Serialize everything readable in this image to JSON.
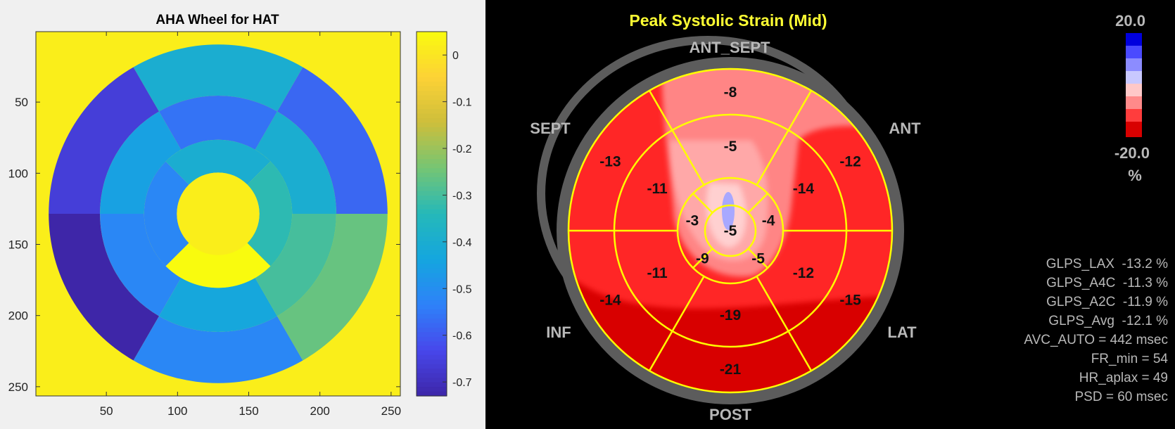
{
  "left_figure": {
    "title": "AHA Wheel for HAT",
    "x_ticks": [
      "50",
      "100",
      "150",
      "200",
      "250"
    ],
    "y_ticks": [
      "50",
      "100",
      "150",
      "200",
      "250"
    ],
    "colorbar_ticks": [
      "0",
      "-0.1",
      "-0.2",
      "-0.3",
      "-0.4",
      "-0.5",
      "-0.6",
      "-0.7"
    ]
  },
  "right_figure": {
    "title": "Peak Systolic Strain (Mid)",
    "wall_labels": {
      "ant_sept": "ANT_SEPT",
      "sept": "SEPT",
      "ant": "ANT",
      "inf": "INF",
      "lat": "LAT",
      "post": "POST"
    },
    "scale": {
      "top": "20.0",
      "bottom": "-20.0",
      "unit": "%"
    },
    "stats": [
      "GLPS_LAX  -13.2 %",
      "GLPS_A4C  -11.3 %",
      "GLPS_A2C  -11.9 %",
      "GLPS_Avg  -12.1 %",
      "AVC_AUTO = 442 msec",
      "FR_min = 54",
      "HR_aplax = 49",
      "PSD = 60 msec"
    ]
  },
  "chart_data": [
    {
      "type": "heatmap",
      "title": "AHA Wheel for HAT",
      "xlabel": "",
      "ylabel": "",
      "xlim": [
        1,
        256
      ],
      "ylim": [
        256,
        1
      ],
      "x_ticks": [
        50,
        100,
        150,
        200,
        250
      ],
      "y_ticks": [
        50,
        100,
        150,
        200,
        250
      ],
      "colormap": "parula",
      "clim": [
        -0.73,
        0.05
      ],
      "background_value": 0.02,
      "segments": {
        "basal": [
          {
            "segment": 1,
            "value": -0.66
          },
          {
            "segment": 2,
            "value": -0.73
          },
          {
            "segment": 3,
            "value": -0.52
          },
          {
            "segment": 4,
            "value": -0.26
          },
          {
            "segment": 5,
            "value": -0.58
          },
          {
            "segment": 6,
            "value": -0.4
          }
        ],
        "mid": [
          {
            "segment": 7,
            "value": -0.45
          },
          {
            "segment": 8,
            "value": -0.52
          },
          {
            "segment": 9,
            "value": -0.43
          },
          {
            "segment": 10,
            "value": -0.3
          },
          {
            "segment": 11,
            "value": -0.4
          },
          {
            "segment": 12,
            "value": -0.56
          }
        ],
        "apical": [
          {
            "segment": 13,
            "value": -0.4
          },
          {
            "segment": 14,
            "value": -0.52
          },
          {
            "segment": 15,
            "value": 0.05
          },
          {
            "segment": 16,
            "value": -0.33
          }
        ],
        "apex": [
          {
            "segment": 17,
            "value": 0.02
          }
        ]
      }
    },
    {
      "type": "heatmap",
      "title": "Peak Systolic Strain (Mid)",
      "unit": "%",
      "clim": [
        -20.0,
        20.0
      ],
      "segments": {
        "basal": [
          {
            "wall": "ANT_SEPT",
            "value": -8
          },
          {
            "wall": "ANT",
            "value": -12
          },
          {
            "wall": "LAT",
            "value": -15
          },
          {
            "wall": "POST",
            "value": -21
          },
          {
            "wall": "INF",
            "value": -14
          },
          {
            "wall": "SEPT",
            "value": -13
          }
        ],
        "mid": [
          {
            "wall": "ANT_SEPT",
            "value": -5
          },
          {
            "wall": "ANT",
            "value": -14
          },
          {
            "wall": "LAT",
            "value": -12
          },
          {
            "wall": "POST",
            "value": -19
          },
          {
            "wall": "INF",
            "value": -11
          },
          {
            "wall": "SEPT",
            "value": -11
          }
        ],
        "apical": [
          {
            "wall": "ANT",
            "value": -4
          },
          {
            "wall": "LAT",
            "value": -5
          },
          {
            "wall": "INF",
            "value": -9
          },
          {
            "wall": "SEPT",
            "value": -3
          }
        ],
        "apex": [
          {
            "value": -5
          }
        ]
      },
      "stats": [
        {
          "label": "GLPS_LAX",
          "value": -13.2,
          "unit": "%"
        },
        {
          "label": "GLPS_A4C",
          "value": -11.3,
          "unit": "%"
        },
        {
          "label": "GLPS_A2C",
          "value": -11.9,
          "unit": "%"
        },
        {
          "label": "GLPS_Avg",
          "value": -12.1,
          "unit": "%"
        },
        {
          "label": "AVC_AUTO",
          "value": 442,
          "unit": "msec"
        },
        {
          "label": "FR_min",
          "value": 54
        },
        {
          "label": "HR_aplax",
          "value": 49
        },
        {
          "label": "PSD",
          "value": 60,
          "unit": "msec"
        }
      ]
    }
  ]
}
